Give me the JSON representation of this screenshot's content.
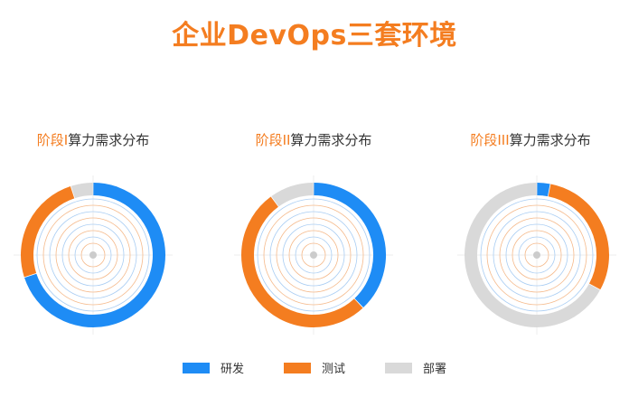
{
  "title": "企业DevOps三套环境",
  "colors": {
    "dev": "#1e8cf5",
    "test": "#f47d20",
    "deploy": "#d9d9d9",
    "accent": "#f47d20",
    "ring_blue": "#a9cdf3",
    "ring_orange": "#f5b98a"
  },
  "chart_data": [
    {
      "type": "pie",
      "title_prefix": "阶段I",
      "title_suffix": "算力需求分布",
      "categories": [
        "研发",
        "测试",
        "部署"
      ],
      "values": [
        70,
        25,
        5
      ]
    },
    {
      "type": "pie",
      "title_prefix": "阶段II",
      "title_suffix": "算力需求分布",
      "categories": [
        "研发",
        "测试",
        "部署"
      ],
      "values": [
        38,
        52,
        10
      ]
    },
    {
      "type": "pie",
      "title_prefix": "阶段III",
      "title_suffix": "算力需求分布",
      "categories": [
        "研发",
        "测试",
        "部署"
      ],
      "values": [
        3,
        30,
        67
      ]
    }
  ],
  "legend": [
    {
      "label": "研发",
      "color": "#1e8cf5"
    },
    {
      "label": "测试",
      "color": "#f47d20"
    },
    {
      "label": "部署",
      "color": "#d9d9d9"
    }
  ]
}
